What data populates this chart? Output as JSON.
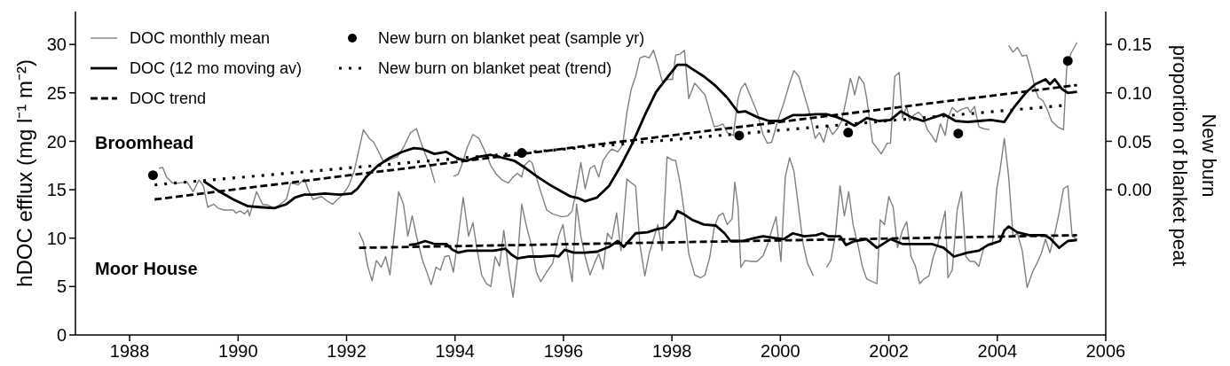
{
  "chart_data": {
    "type": "line",
    "ylabel": "hDOC efflux (mg l⁻¹ m⁻²)",
    "y2label": "New burn\nproportion of blanket peat",
    "xlim": [
      1987,
      2006
    ],
    "xticks": [
      1988,
      1990,
      1992,
      1994,
      1996,
      1998,
      2000,
      2002,
      2004,
      2006
    ],
    "ylim": [
      0,
      33.4
    ],
    "yticks": [
      0,
      5,
      10,
      15,
      20,
      25,
      30
    ],
    "y2lim": [
      -0.15,
      0.184
    ],
    "y2ticks": [
      {
        "value": 0,
        "label": "0.00"
      },
      {
        "value": 0.05,
        "label": "0.05"
      },
      {
        "value": 0.1,
        "label": "0.10"
      },
      {
        "value": 0.15,
        "label": "0.15"
      }
    ],
    "grid": false,
    "legend": "top left",
    "marker": "none",
    "annotations": [
      "Broomhead",
      "Moor House"
    ],
    "series": [
      {
        "name": "DOC monthly mean",
        "color": "#808080",
        "line_style": "solid",
        "x": [
          1988.54,
          1988.61,
          1988.68,
          1988.79,
          1988.92,
          1989.06,
          1989.17,
          1989.28,
          1989.36,
          1989.44,
          1989.55,
          1989.63,
          1989.74,
          1989.91,
          1989.96,
          1990.04,
          1990.12,
          1990.18,
          1990.21,
          1990.34,
          1990.45,
          1990.56,
          1990.67,
          1990.78,
          1990.89,
          1990.97,
          1991.11,
          1991.22,
          1991.3,
          1991.38,
          1991.54,
          1991.65,
          1991.74,
          1991.93,
          1992.04,
          1992.14,
          1992.31,
          1992.42,
          1992.5,
          1992.61,
          1992.69,
          1992.8,
          1992.94,
          1993.07,
          1993.18,
          1993.29,
          1993.37,
          1993.45,
          1993.54,
          1993.63,
          1993.8,
          1993.97,
          1994.06,
          1994.14,
          1994.22,
          1994.33,
          1994.44,
          1994.55,
          1994.66,
          1994.76,
          1994.87,
          1994.98,
          1995.07,
          1995.15,
          1995.23,
          1995.28,
          1995.37,
          1995.42,
          1995.53,
          1995.69,
          1995.8,
          1995.97,
          1996.08,
          1996.16,
          1996.24,
          1996.32,
          1996.4,
          1996.49,
          1996.57,
          1996.65,
          1996.73,
          1996.81,
          1996.89,
          1997.0,
          1997.09,
          1997.17,
          1997.25,
          1997.33,
          1997.41,
          1997.5,
          1997.58,
          1997.66,
          1997.74,
          1997.82,
          1997.93,
          1998.01,
          1998.07,
          1998.15,
          1998.23,
          1998.31,
          1998.42,
          1998.53,
          1998.61,
          1998.7,
          1998.78,
          1998.86,
          1998.94,
          1999.02,
          1999.13,
          1999.22,
          1999.27,
          1999.35,
          1999.46,
          1999.57,
          1999.68,
          1999.76,
          1999.84,
          1999.95,
          2000.06,
          2000.17,
          2000.25,
          2000.34,
          2000.44,
          2000.55,
          2000.64,
          2000.72,
          2000.8,
          2000.88,
          2000.96,
          2001.04,
          2001.13,
          2001.21,
          2001.29,
          2001.32,
          2001.37,
          2001.45,
          2001.54,
          2001.59,
          2001.7,
          2001.78,
          2001.86,
          2001.97,
          2002.03,
          2002.11,
          2002.19,
          2002.25,
          2002.33,
          2002.38,
          2002.46,
          2002.55,
          2002.63,
          2002.71,
          2002.79,
          2002.87,
          2002.95,
          2003.04,
          2003.09,
          2003.17,
          2003.26,
          2003.34,
          2003.45,
          2003.5,
          2003.58,
          2003.66,
          2003.75,
          2003.86,
          2004.04,
          2004.21,
          2004.29,
          2004.37,
          2004.46,
          2004.54,
          2004.62,
          2004.7,
          2004.76,
          2004.84,
          2004.92,
          2005.0,
          2005.11,
          2005.22,
          2005.28,
          2005.36,
          2005.47
        ],
        "values": [
          17.2,
          17.3,
          16.3,
          15.7,
          15.7,
          15.8,
          14.8,
          16.0,
          15.4,
          13.2,
          13.5,
          13.1,
          12.9,
          12.9,
          12.6,
          12.8,
          12.5,
          12.9,
          12.3,
          14.8,
          13.5,
          13.4,
          13.1,
          13.5,
          14.0,
          15.7,
          15.5,
          16.1,
          14.9,
          14.0,
          14.3,
          13.8,
          13.5,
          14.5,
          15.4,
          16.9,
          21.2,
          20.3,
          19.9,
          18.7,
          17.8,
          18.1,
          18.4,
          19.6,
          20.9,
          21.3,
          19.9,
          18.7,
          17.5,
          15.7,
          null,
          16.4,
          16.6,
          17.8,
          19.3,
          20.7,
          20.3,
          19.0,
          17.5,
          16.6,
          16.0,
          15.7,
          16.3,
          16.7,
          16.3,
          17.5,
          18.0,
          17.8,
          15.7,
          12.9,
          12.5,
          12.2,
          12.3,
          12.8,
          15.1,
          17.8,
          15.1,
          17.2,
          17.5,
          16.3,
          18.0,
          18.7,
          19.2,
          18.9,
          19.6,
          23.0,
          25.4,
          26.7,
          28.6,
          28.8,
          28.6,
          29.4,
          27.9,
          26.2,
          26.4,
          26.4,
          28.9,
          29.0,
          29.4,
          24.4,
          26.0,
          25.3,
          24.8,
          23.0,
          21.5,
          21.6,
          21.8,
          20.9,
          20.6,
          24.4,
          25.4,
          26.0,
          24.5,
          23.0,
          20.7,
          19.8,
          19.9,
          22.1,
          23.9,
          26.0,
          27.3,
          26.7,
          24.8,
          22.7,
          20.3,
          20.9,
          19.9,
          21.6,
          20.7,
          21.2,
          22.1,
          24.2,
          26.5,
          26.0,
          24.8,
          26.7,
          26.0,
          24.5,
          19.9,
          19.3,
          18.7,
          19.8,
          19.8,
          26.7,
          27.1,
          22.4,
          23.6,
          22.1,
          22.7,
          23.0,
          22.5,
          21.2,
          20.6,
          19.9,
          21.8,
          20.6,
          22.4,
          23.5,
          23.0,
          23.3,
          23.5,
          23.0,
          23.6,
          21.5,
          21.3,
          21.2,
          null,
          29.9,
          29.2,
          29.7,
          28.8,
          28.9,
          27.3,
          25.4,
          24.5,
          24.2,
          23.3,
          22.1,
          21.5,
          21.2,
          27.6,
          29.1,
          30.2
        ]
      },
      {
        "name": "DOC (12 mo moving av)",
        "color": "#000000",
        "line_style": "solid",
        "x": [
          1989.36,
          1989.63,
          1989.91,
          1990.18,
          1990.4,
          1990.67,
          1990.89,
          1991.05,
          1991.22,
          1991.38,
          1991.6,
          1991.87,
          1992.09,
          1992.2,
          1992.36,
          1992.58,
          1992.8,
          1993.02,
          1993.24,
          1993.4,
          1993.62,
          1993.84,
          1994.06,
          1994.22,
          1994.44,
          1994.66,
          1994.87,
          1995.09,
          1995.31,
          1995.53,
          1995.75,
          1995.97,
          1996.13,
          1996.29,
          1996.4,
          1996.62,
          1996.84,
          1997.06,
          1997.28,
          1997.5,
          1997.71,
          1997.93,
          1998.1,
          1998.26,
          1998.42,
          1998.59,
          1998.81,
          1999.02,
          1999.22,
          1999.35,
          1999.57,
          1999.79,
          2000.01,
          2000.23,
          2000.44,
          2000.66,
          2000.85,
          2001.04,
          2001.21,
          2001.37,
          2001.59,
          2001.81,
          2002.03,
          2002.22,
          2002.41,
          2002.63,
          2002.79,
          2003.01,
          2003.23,
          2003.45,
          2003.66,
          2003.88,
          2004.13,
          2004.32,
          2004.54,
          2004.7,
          2004.89,
          2004.97,
          2005.06,
          2005.19,
          2005.3,
          2005.47
        ],
        "values": [
          15.9,
          14.9,
          14.0,
          13.3,
          13.2,
          13.1,
          13.5,
          14.2,
          14.5,
          14.5,
          14.6,
          14.5,
          14.6,
          15.1,
          16.3,
          17.5,
          18.3,
          18.9,
          19.3,
          19.2,
          18.7,
          18.9,
          18.2,
          18.0,
          18.4,
          18.6,
          18.3,
          18.0,
          17.2,
          16.3,
          15.5,
          14.8,
          14.3,
          14.1,
          13.8,
          14.2,
          15.4,
          17.5,
          19.9,
          22.7,
          25.1,
          26.7,
          27.9,
          27.9,
          27.3,
          26.7,
          25.7,
          24.5,
          23.0,
          23.1,
          22.5,
          22.1,
          22.1,
          22.7,
          22.7,
          22.8,
          22.8,
          22.5,
          22.1,
          21.6,
          22.4,
          22.1,
          22.2,
          23.1,
          22.5,
          22.1,
          22.4,
          22.8,
          22.1,
          22.0,
          22.1,
          22.2,
          22.0,
          23.6,
          25.1,
          25.9,
          26.4,
          25.9,
          26.4,
          25.4,
          25.0,
          25.1
        ]
      },
      {
        "name": "DOC trend",
        "color": "#000000",
        "line_style": "dashed",
        "x": [
          1988.46,
          2005.47
        ],
        "values": [
          14.0,
          25.8
        ]
      },
      {
        "color": "#808080",
        "line_style": "solid",
        "x": [
          1992.23,
          1992.31,
          1992.39,
          1992.47,
          1992.55,
          1992.64,
          1992.72,
          1992.8,
          1992.88,
          1992.96,
          1993.05,
          1993.13,
          1993.21,
          1993.29,
          1993.4,
          1993.48,
          1993.56,
          1993.65,
          1993.73,
          1993.81,
          1993.89,
          1993.97,
          1994.06,
          1994.15,
          1994.25,
          1994.33,
          1994.41,
          1994.49,
          1994.58,
          1994.66,
          1994.74,
          1994.82,
          1994.9,
          1994.98,
          1995.07,
          1995.15,
          1995.23,
          1995.31,
          1995.42,
          1995.5,
          1995.58,
          1995.69,
          1995.8,
          1995.91,
          1995.99,
          1996.08,
          1996.16,
          1996.24,
          1996.32,
          1996.4,
          1996.49,
          1996.57,
          1996.65,
          1996.73,
          1996.81,
          1996.89,
          1996.98,
          1997.06,
          1997.17,
          1997.25,
          1997.33,
          1997.41,
          1997.5,
          1997.58,
          1997.66,
          1997.74,
          1997.82,
          1997.91,
          1997.99,
          1998.07,
          1998.15,
          1998.23,
          1998.31,
          1998.42,
          1998.53,
          1998.61,
          1998.7,
          1998.78,
          1998.86,
          1998.94,
          1999.02,
          1999.11,
          1999.16,
          1999.22,
          1999.27,
          1999.35,
          1999.46,
          1999.57,
          1999.68,
          1999.76,
          1999.84,
          1999.92,
          2000.01,
          2000.09,
          2000.17,
          2000.25,
          2000.33,
          2000.42,
          2000.5,
          2000.61,
          2000.73,
          2000.85,
          2000.93,
          2001.02,
          2001.1,
          2001.18,
          2001.26,
          2001.34,
          2001.43,
          2001.51,
          2001.59,
          2001.7,
          2001.78,
          2001.84,
          2001.92,
          2002.0,
          2002.08,
          2002.16,
          2002.25,
          2002.33,
          2002.41,
          2002.49,
          2002.57,
          2002.65,
          2002.74,
          2002.82,
          2002.9,
          2002.98,
          2003.04,
          2003.09,
          2003.17,
          2003.26,
          2003.34,
          2003.42,
          2003.5,
          2003.58,
          2003.66,
          2003.75,
          2003.83,
          2003.91,
          2003.99,
          2004.05,
          2004.13,
          2004.21,
          2004.29,
          2004.37,
          2004.46,
          2004.55,
          2004.65,
          2004.73,
          2004.81,
          2004.89,
          2004.97,
          2005.06,
          2005.14,
          2005.22,
          2005.3,
          2005.38,
          2005.47
        ],
        "values": [
          10.6,
          9.6,
          7.1,
          5.6,
          7.7,
          7.0,
          8.1,
          6.2,
          10.5,
          14.8,
          13.5,
          10.2,
          12.3,
          10.2,
          7.7,
          6.5,
          5.2,
          7.0,
          6.7,
          8.1,
          8.2,
          6.5,
          10.2,
          14.2,
          10.2,
          11.6,
          8.7,
          6.2,
          5.3,
          5.0,
          8.1,
          7.1,
          10.8,
          7.1,
          3.9,
          7.7,
          13.5,
          11.4,
          9.0,
          6.5,
          5.5,
          6.5,
          7.4,
          10.2,
          11.4,
          8.1,
          5.5,
          13.5,
          10.2,
          8.1,
          6.2,
          7.4,
          8.4,
          6.8,
          10.5,
          9.9,
          12.6,
          8.7,
          16.1,
          15.7,
          15.4,
          9.3,
          6.1,
          8.4,
          9.9,
          11.4,
          8.7,
          18.4,
          18.1,
          18.0,
          15.7,
          12.6,
          8.4,
          6.2,
          5.9,
          6.2,
          8.1,
          11.1,
          12.3,
          12.6,
          11.4,
          12.0,
          15.8,
          13.2,
          7.0,
          7.7,
          7.6,
          7.6,
          8.2,
          9.3,
          10.8,
          12.2,
          7.6,
          16.3,
          18.3,
          16.9,
          13.4,
          9.4,
          7.4,
          6.1,
          null,
          7.0,
          7.7,
          10.5,
          15.4,
          12.3,
          14.8,
          11.4,
          9.3,
          7.1,
          5.8,
          5.5,
          5.3,
          11.9,
          11.4,
          14.3,
          13.2,
          9.0,
          10.8,
          11.7,
          8.1,
          7.1,
          5.3,
          5.8,
          6.1,
          8.1,
          9.3,
          11.4,
          12.8,
          5.9,
          6.7,
          12.9,
          14.8,
          8.1,
          7.6,
          7.6,
          7.1,
          9.0,
          9.3,
          9.3,
          15.1,
          17.0,
          20.3,
          16.3,
          10.2,
          10.5,
          8.7,
          4.9,
          6.5,
          7.4,
          8.4,
          9.9,
          8.5,
          10.5,
          12.6,
          15.1,
          15.4,
          10.2,
          9.9
        ]
      },
      {
        "color": "#000000",
        "line_style": "solid",
        "x": [
          1993.15,
          1993.29,
          1993.45,
          1993.62,
          1993.84,
          1993.95,
          1994.06,
          1994.22,
          1994.44,
          1994.71,
          1994.93,
          1995.04,
          1995.15,
          1995.37,
          1995.58,
          1995.8,
          1995.91,
          1996.02,
          1996.19,
          1996.4,
          1996.62,
          1996.84,
          1997.0,
          1997.11,
          1997.33,
          1997.55,
          1997.71,
          1997.88,
          1998.04,
          1998.1,
          1998.21,
          1998.37,
          1998.59,
          1998.81,
          1998.97,
          1999.08,
          1999.3,
          1999.52,
          1999.68,
          1999.9,
          2000.06,
          2000.23,
          2000.44,
          2000.66,
          2000.77,
          2000.88,
          2001.1,
          2001.21,
          2001.37,
          2001.59,
          2001.78,
          2002.03,
          2002.25,
          2002.52,
          2002.79,
          2003.01,
          2003.2,
          2003.45,
          2003.66,
          2003.83,
          2004.05,
          2004.13,
          2004.21,
          2004.37,
          2004.59,
          2004.87,
          2004.97,
          2005.14,
          2005.3,
          2005.47
        ],
        "values": [
          9.3,
          9.4,
          9.7,
          9.4,
          9.4,
          8.8,
          8.5,
          8.7,
          8.7,
          8.7,
          8.9,
          8.3,
          7.9,
          8.1,
          8.1,
          8.2,
          8.1,
          8.8,
          8.5,
          8.5,
          8.6,
          9.1,
          9.7,
          9.1,
          10.5,
          10.6,
          10.9,
          11.1,
          12.0,
          12.8,
          12.5,
          11.9,
          11.4,
          11.3,
          10.5,
          9.7,
          9.7,
          10.0,
          10.2,
          10.0,
          9.9,
          10.5,
          10.2,
          10.3,
          10.5,
          10.2,
          10.2,
          9.3,
          9.7,
          9.9,
          9.0,
          9.9,
          9.4,
          9.4,
          9.4,
          9.0,
          8.1,
          8.5,
          8.7,
          9.3,
          9.7,
          10.8,
          11.2,
          10.6,
          10.3,
          10.3,
          10.0,
          9.0,
          9.7,
          9.8
        ]
      },
      {
        "color": "#000000",
        "line_style": "dashed",
        "x": [
          1992.23,
          2005.47
        ],
        "values": [
          9.0,
          10.3
        ]
      },
      {
        "name": "New burn on blanket peat (sample yr)",
        "type": "scatter",
        "axis": "y2",
        "marker": "circle",
        "color": "#000000",
        "x": [
          1988.43,
          1995.23,
          1999.24,
          2001.25,
          2003.28,
          2005.3
        ],
        "values": [
          0.015,
          0.038,
          0.056,
          0.059,
          0.058,
          0.133
        ]
      },
      {
        "name": "New burn on blanket peat (trend)",
        "axis": "y2",
        "color": "#000000",
        "line_style": "dotted",
        "x": [
          1988.46,
          2005.22
        ],
        "values": [
          0.005,
          0.087
        ]
      }
    ]
  }
}
